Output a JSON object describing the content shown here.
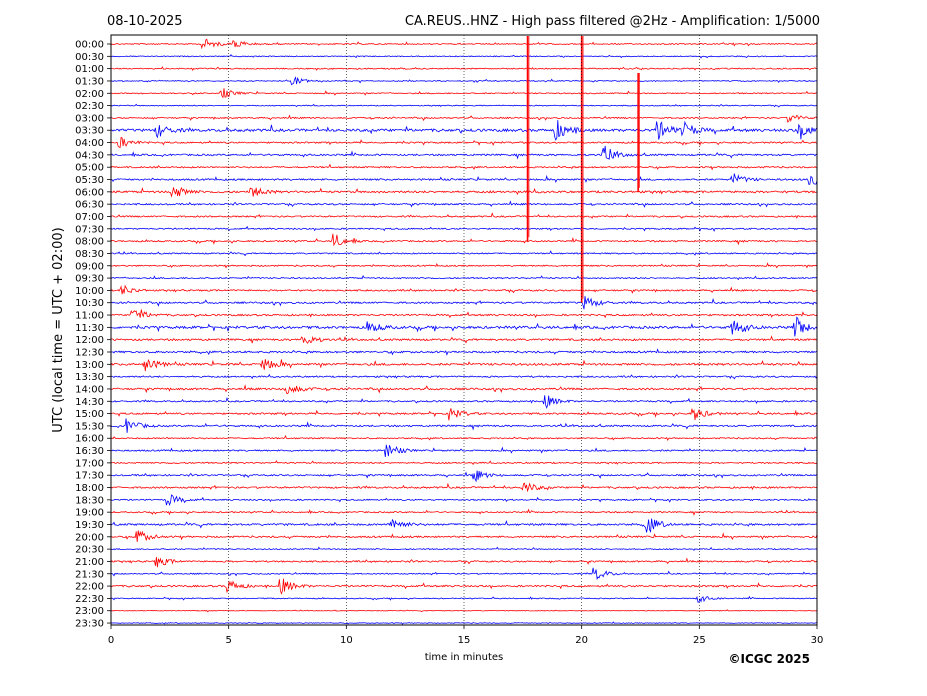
{
  "header": {
    "date": "08-10-2025",
    "title": "CA.REUS..HNZ - High pass filtered @2Hz - Amplification: 1/5000"
  },
  "footer": {
    "copyright": "©ICGC 2025"
  },
  "chart_data": {
    "type": "line",
    "subtype": "helicorder",
    "xlabel": "time in minutes",
    "ylabel": "UTC (local time = UTC + 02:00)",
    "xlim": [
      0,
      30
    ],
    "x_ticks": [
      0,
      5,
      10,
      15,
      20,
      25,
      30
    ],
    "x_gridlines": [
      5,
      10,
      15,
      20,
      25
    ],
    "trace_colors": [
      "#ff0000",
      "#0000ff"
    ],
    "row_labels": [
      "00:00",
      "00:30",
      "01:00",
      "01:30",
      "02:00",
      "02:30",
      "03:00",
      "03:30",
      "04:00",
      "04:30",
      "05:00",
      "05:30",
      "06:00",
      "06:30",
      "07:00",
      "07:30",
      "08:00",
      "08:30",
      "09:00",
      "09:30",
      "10:00",
      "10:30",
      "11:00",
      "11:30",
      "12:00",
      "12:30",
      "13:00",
      "13:30",
      "14:00",
      "14:30",
      "15:00",
      "15:30",
      "16:00",
      "16:30",
      "17:00",
      "17:30",
      "18:00",
      "18:30",
      "19:00",
      "19:30",
      "20:00",
      "20:30",
      "21:00",
      "21:30",
      "22:00",
      "22:30",
      "23:00",
      "23:30"
    ],
    "row_activity": [
      0.6,
      0.5,
      0.6,
      0.5,
      0.6,
      0.5,
      0.7,
      1.4,
      0.8,
      0.9,
      0.8,
      0.9,
      1.1,
      0.8,
      0.8,
      0.7,
      0.8,
      0.7,
      0.7,
      0.7,
      0.8,
      0.9,
      0.9,
      1.3,
      1.0,
      1.0,
      1.1,
      0.8,
      1.0,
      0.8,
      0.9,
      0.9,
      0.7,
      0.8,
      0.7,
      0.8,
      0.9,
      0.7,
      0.7,
      1.0,
      0.9,
      0.6,
      0.8,
      0.6,
      0.9,
      0.5,
      0.3,
      0.4
    ],
    "events": [
      {
        "row": 0,
        "minute": 4.0,
        "amp": 0.6
      },
      {
        "row": 0,
        "minute": 5.3,
        "amp": 0.5
      },
      {
        "row": 3,
        "minute": 7.8,
        "amp": 0.4
      },
      {
        "row": 4,
        "minute": 4.8,
        "amp": 0.5
      },
      {
        "row": 6,
        "minute": 28.9,
        "amp": 0.4
      },
      {
        "row": 7,
        "minute": 2.0,
        "amp": 0.7
      },
      {
        "row": 7,
        "minute": 19.0,
        "amp": 1.0
      },
      {
        "row": 7,
        "minute": 23.3,
        "amp": 1.0
      },
      {
        "row": 7,
        "minute": 24.4,
        "amp": 0.8
      },
      {
        "row": 7,
        "minute": 29.3,
        "amp": 0.9
      },
      {
        "row": 8,
        "minute": 0.4,
        "amp": 0.6
      },
      {
        "row": 9,
        "minute": 21.0,
        "amp": 0.8
      },
      {
        "row": 11,
        "minute": 26.5,
        "amp": 0.6
      },
      {
        "row": 11,
        "minute": 29.8,
        "amp": 0.7
      },
      {
        "row": 12,
        "minute": 2.7,
        "amp": 0.7
      },
      {
        "row": 12,
        "minute": 6.0,
        "amp": 0.6
      },
      {
        "row": 16,
        "minute": 9.5,
        "amp": 0.8
      },
      {
        "row": 20,
        "minute": 0.5,
        "amp": 0.6
      },
      {
        "row": 21,
        "minute": 20.2,
        "amp": 0.7
      },
      {
        "row": 22,
        "minute": 1.0,
        "amp": 0.8
      },
      {
        "row": 23,
        "minute": 11.0,
        "amp": 0.6
      },
      {
        "row": 23,
        "minute": 26.5,
        "amp": 0.8
      },
      {
        "row": 23,
        "minute": 29.2,
        "amp": 1.0
      },
      {
        "row": 24,
        "minute": 8.2,
        "amp": 0.7
      },
      {
        "row": 26,
        "minute": 1.5,
        "amp": 0.7
      },
      {
        "row": 26,
        "minute": 6.5,
        "amp": 0.8
      },
      {
        "row": 28,
        "minute": 7.5,
        "amp": 0.8
      },
      {
        "row": 29,
        "minute": 18.5,
        "amp": 0.7
      },
      {
        "row": 30,
        "minute": 14.5,
        "amp": 0.6
      },
      {
        "row": 30,
        "minute": 24.8,
        "amp": 0.7
      },
      {
        "row": 31,
        "minute": 0.7,
        "amp": 0.8
      },
      {
        "row": 33,
        "minute": 11.8,
        "amp": 0.7
      },
      {
        "row": 35,
        "minute": 15.5,
        "amp": 0.6
      },
      {
        "row": 36,
        "minute": 17.6,
        "amp": 0.6
      },
      {
        "row": 37,
        "minute": 2.5,
        "amp": 0.6
      },
      {
        "row": 39,
        "minute": 22.8,
        "amp": 1.0
      },
      {
        "row": 39,
        "minute": 12.0,
        "amp": 0.7
      },
      {
        "row": 40,
        "minute": 1.2,
        "amp": 0.7
      },
      {
        "row": 42,
        "minute": 2.0,
        "amp": 0.6
      },
      {
        "row": 43,
        "minute": 20.6,
        "amp": 0.7
      },
      {
        "row": 44,
        "minute": 5.0,
        "amp": 0.7
      },
      {
        "row": 44,
        "minute": 7.3,
        "amp": 0.8
      },
      {
        "row": 45,
        "minute": 25.0,
        "amp": 0.4
      }
    ],
    "vertical_spikes": [
      {
        "minute": 17.7,
        "from_row": 0,
        "to_row": 16
      },
      {
        "minute": 20.0,
        "from_row": 0,
        "to_row": 21
      },
      {
        "minute": 22.4,
        "from_row": 3,
        "to_row": 12
      }
    ]
  }
}
